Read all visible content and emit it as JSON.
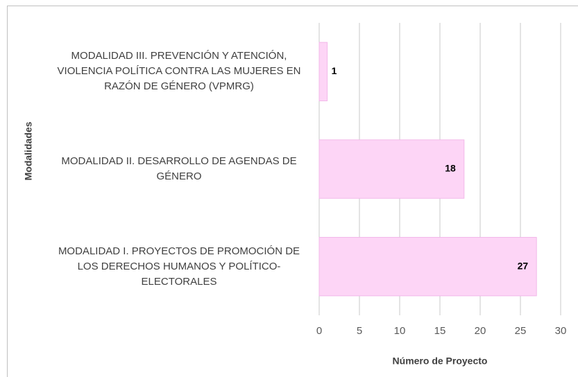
{
  "chart_data": {
    "type": "bar",
    "orientation": "horizontal",
    "x_label": "Número de Proyecto",
    "y_label": "Modalidades",
    "categories": [
      "MODALIDAD III. PREVENCIÓN Y ATENCIÓN, VIOLENCIA POLÍTICA CONTRA LAS MUJERES EN RAZÓN DE GÉNERO  (VPMRG)",
      "MODALIDAD II. DESARROLLO DE AGENDAS DE GÉNERO",
      "MODALIDAD I. PROYECTOS DE PROMOCIÓN DE LOS DERECHOS HUMANOS Y POLÍTICO-ELECTORALES"
    ],
    "values": [
      1,
      18,
      27
    ],
    "color": "#fdd5f6",
    "xlim": [
      0,
      30
    ],
    "xticks": [
      0,
      5,
      10,
      15,
      20,
      25,
      30
    ],
    "grid": true
  }
}
